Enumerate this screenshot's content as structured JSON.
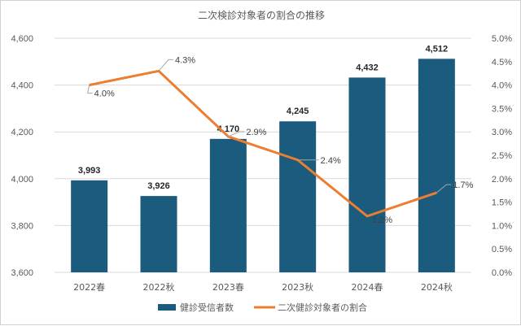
{
  "chart_data": {
    "type": "bar",
    "title": "二次検診対象者の割合の推移",
    "categories": [
      "2022春",
      "2022秋",
      "2023春",
      "2023秋",
      "2024春",
      "2024秋"
    ],
    "series": [
      {
        "name": "健診受信者数",
        "type": "bar",
        "axis": "left",
        "values": [
          3993,
          3926,
          4170,
          4245,
          4432,
          4512
        ],
        "labels": [
          "3,993",
          "3,926",
          "4,170",
          "4,245",
          "4,432",
          "4,512"
        ]
      },
      {
        "name": "二次健診対象者の割合",
        "type": "line",
        "axis": "right",
        "values": [
          4.0,
          4.3,
          2.9,
          2.4,
          1.2,
          1.7
        ],
        "labels": [
          "4.0%",
          "4.3%",
          "2.9%",
          "2.4%",
          "1.2%",
          "1.7%"
        ]
      }
    ],
    "y_left": {
      "ylim": [
        3600,
        4600
      ],
      "ticks": [
        3600,
        3800,
        4000,
        4200,
        4400,
        4600
      ],
      "tick_labels": [
        "3,600",
        "3,800",
        "4,000",
        "4,200",
        "4,400",
        "4,600"
      ]
    },
    "y_right": {
      "ylim": [
        0,
        5
      ],
      "ticks": [
        0,
        0.5,
        1,
        1.5,
        2,
        2.5,
        3,
        3.5,
        4,
        4.5,
        5
      ],
      "tick_labels": [
        "0.0%",
        "0.5%",
        "1.0%",
        "1.5%",
        "2.0%",
        "2.5%",
        "3.0%",
        "3.5%",
        "4.0%",
        "4.5%",
        "5.0%"
      ]
    },
    "grid": true,
    "legend_position": "bottom",
    "colors": {
      "bar": "#1b5b7e",
      "line": "#ed7d31",
      "grid": "#d9d9d9",
      "text": "#595959"
    }
  }
}
